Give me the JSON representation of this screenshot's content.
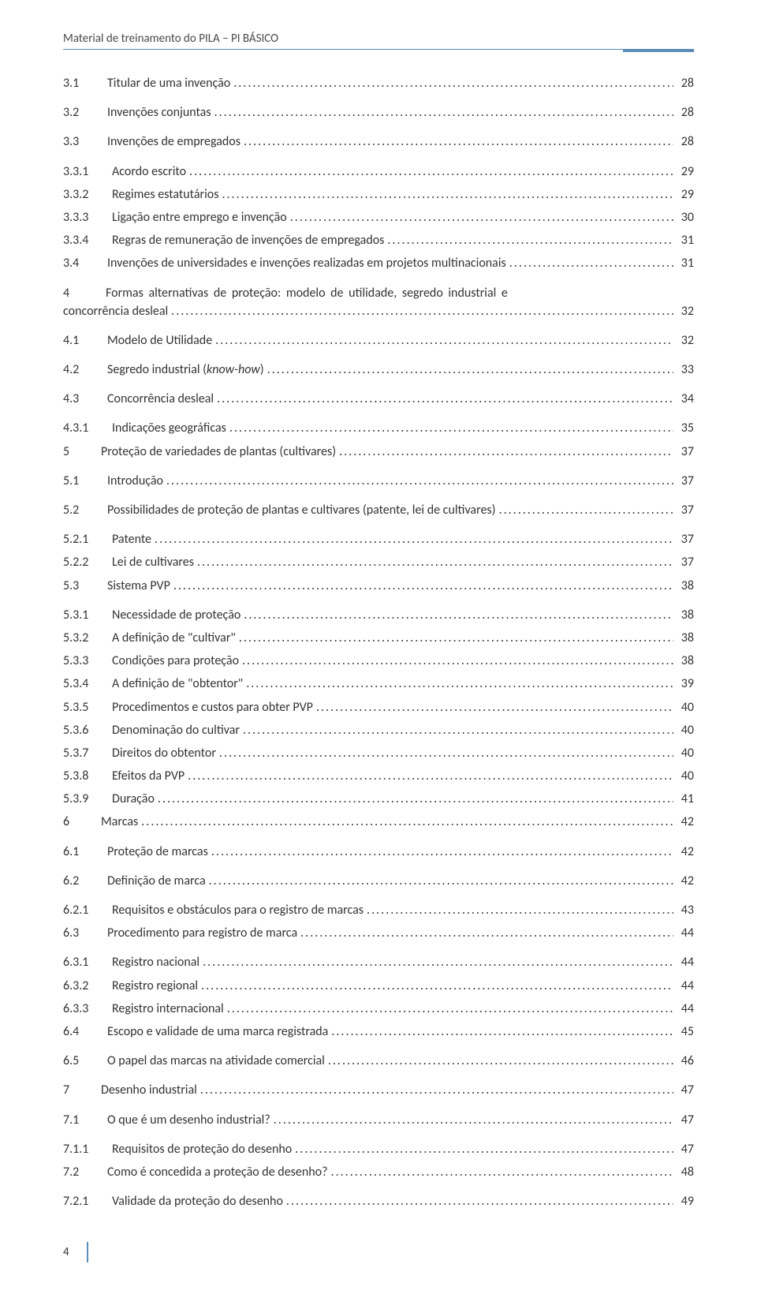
{
  "header": {
    "text": "Material de treinamento do PILA – PI BÁSICO",
    "rule_color": "#5b8db8"
  },
  "footer": {
    "page_number": "4"
  },
  "toc": [
    {
      "num": "3.1",
      "title": "Titular de uma invenção",
      "page": "28",
      "level": 1,
      "gap": false
    },
    {
      "num": "3.2",
      "title": "Invenções conjuntas",
      "page": "28",
      "level": 1,
      "gap": true
    },
    {
      "num": "3.3",
      "title": "Invenções de empregados",
      "page": "28",
      "level": 1,
      "gap": true
    },
    {
      "num": "3.3.1",
      "title": "Acordo escrito",
      "page": "29",
      "level": 2,
      "gap": true
    },
    {
      "num": "3.3.2",
      "title": "Regimes estatutários",
      "page": "29",
      "level": 2,
      "gap": false
    },
    {
      "num": "3.3.3",
      "title": "Ligação entre emprego e invenção",
      "page": "30",
      "level": 2,
      "gap": false
    },
    {
      "num": "3.3.4",
      "title": "Regras de remuneração de invenções de empregados",
      "page": "31",
      "level": 2,
      "gap": false
    },
    {
      "num": "3.4",
      "title": "Invenções de universidades e invenções realizadas em projetos multinacionais",
      "page": "31",
      "level": 1,
      "gap": false
    },
    {
      "num": "4",
      "title_wrap": [
        "Formas  alternativas  de  proteção:  modelo  de  utilidade,  segredo  industrial  e",
        "concorrência desleal"
      ],
      "page": "32",
      "level": 0,
      "gap": true,
      "wrap": true
    },
    {
      "num": "4.1",
      "title": "Modelo de Utilidade",
      "page": "32",
      "level": 1,
      "gap": true
    },
    {
      "num": "4.2",
      "title_html": "Segredo industrial (<span class=\"italic\">know-how</span>)",
      "page": "33",
      "level": 1,
      "gap": true
    },
    {
      "num": "4.3",
      "title": "Concorrência desleal",
      "page": "34",
      "level": 1,
      "gap": true
    },
    {
      "num": "4.3.1",
      "title": "Indicações geográficas",
      "page": "35",
      "level": 2,
      "gap": true
    },
    {
      "num": "5",
      "title": "Proteção de variedades de plantas (cultivares)",
      "page": "37",
      "level": 0,
      "gap": false
    },
    {
      "num": "5.1",
      "title": "Introdução",
      "page": "37",
      "level": 1,
      "gap": true
    },
    {
      "num": "5.2",
      "title": "Possibilidades de proteção de plantas e cultivares (patente, lei de cultivares)",
      "page": "37",
      "level": 1,
      "gap": true
    },
    {
      "num": "5.2.1",
      "title": "Patente",
      "page": "37",
      "level": 2,
      "gap": true
    },
    {
      "num": "5.2.2",
      "title": "Lei de cultivares",
      "page": "37",
      "level": 2,
      "gap": false
    },
    {
      "num": "5.3",
      "title": "Sistema PVP",
      "page": "38",
      "level": 1,
      "gap": false
    },
    {
      "num": "5.3.1",
      "title": "Necessidade de proteção",
      "page": "38",
      "level": 2,
      "gap": true
    },
    {
      "num": "5.3.2",
      "title": "A definição de \"cultivar\"",
      "page": "38",
      "level": 2,
      "gap": false
    },
    {
      "num": "5.3.3",
      "title": "Condições para proteção",
      "page": "38",
      "level": 2,
      "gap": false
    },
    {
      "num": "5.3.4",
      "title": "A definição de \"obtentor\"",
      "page": "39",
      "level": 2,
      "gap": false
    },
    {
      "num": "5.3.5",
      "title": "Procedimentos e custos para obter PVP",
      "page": "40",
      "level": 2,
      "gap": false
    },
    {
      "num": "5.3.6",
      "title": "Denominação do cultivar",
      "page": "40",
      "level": 2,
      "gap": false
    },
    {
      "num": "5.3.7",
      "title": "Direitos do obtentor",
      "page": "40",
      "level": 2,
      "gap": false
    },
    {
      "num": "5.3.8",
      "title": "Efeitos da PVP",
      "page": "40",
      "level": 2,
      "gap": false
    },
    {
      "num": "5.3.9",
      "title": "Duração",
      "page": "41",
      "level": 2,
      "gap": false
    },
    {
      "num": "6",
      "title": "Marcas",
      "page": "42",
      "level": 0,
      "gap": false
    },
    {
      "num": "6.1",
      "title": "Proteção de marcas",
      "page": "42",
      "level": 1,
      "gap": true
    },
    {
      "num": "6.2",
      "title": "Definição de marca",
      "page": "42",
      "level": 1,
      "gap": true
    },
    {
      "num": "6.2.1",
      "title": "Requisitos e obstáculos para o registro de marcas",
      "page": "43",
      "level": 2,
      "gap": true
    },
    {
      "num": "6.3",
      "title": "Procedimento para registro de marca",
      "page": "44",
      "level": 1,
      "gap": false
    },
    {
      "num": "6.3.1",
      "title": "Registro nacional",
      "page": "44",
      "level": 2,
      "gap": true
    },
    {
      "num": "6.3.2",
      "title": "Registro regional",
      "page": "44",
      "level": 2,
      "gap": false
    },
    {
      "num": "6.3.3",
      "title": "Registro internacional",
      "page": "44",
      "level": 2,
      "gap": false
    },
    {
      "num": "6.4",
      "title": "Escopo e validade de uma marca registrada",
      "page": "45",
      "level": 1,
      "gap": false
    },
    {
      "num": "6.5",
      "title": "O papel das marcas na atividade comercial",
      "page": "46",
      "level": 1,
      "gap": true
    },
    {
      "num": "7",
      "title": "Desenho industrial",
      "page": "47",
      "level": 0,
      "gap": true
    },
    {
      "num": "7.1",
      "title": "O que é um desenho industrial?",
      "page": "47",
      "level": 1,
      "gap": true
    },
    {
      "num": "7.1.1",
      "title": "Requisitos de proteção do desenho",
      "page": "47",
      "level": 2,
      "gap": true
    },
    {
      "num": "7.2",
      "title": "Como é concedida a proteção de desenho?",
      "page": "48",
      "level": 1,
      "gap": false
    },
    {
      "num": "7.2.1",
      "title": "Validade da proteção do desenho",
      "page": "49",
      "level": 2,
      "gap": true
    }
  ]
}
